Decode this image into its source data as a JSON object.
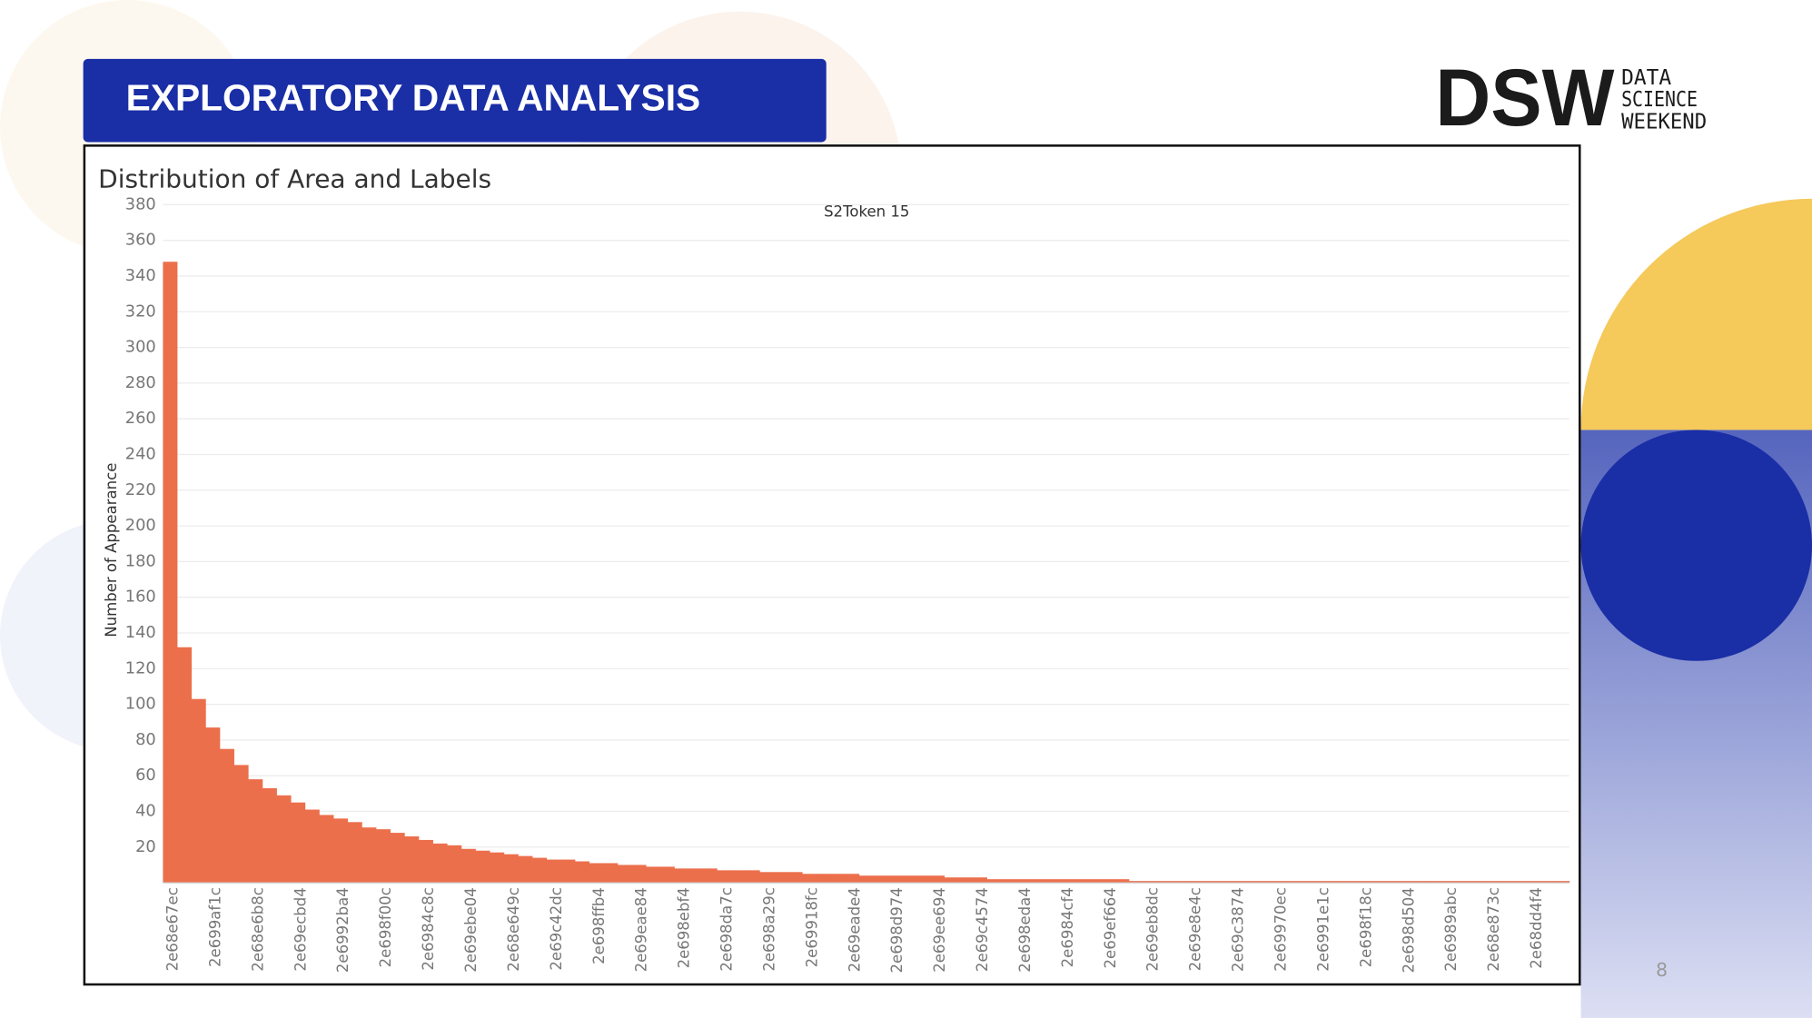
{
  "header": {
    "title": "EXPLORATORY DATA ANALYSIS"
  },
  "logo": {
    "mark": "DSW",
    "lines": [
      "DATA",
      "SCIENCE",
      "WEEKEND"
    ]
  },
  "page_number": "8",
  "chart_data": {
    "type": "bar",
    "title": "Distribution of Area and Labels",
    "subtitle": "S2Token 15",
    "y_label": "Number of Appearance",
    "color": "#ec6f4c",
    "grid": true,
    "ylim": [
      0,
      390
    ],
    "yticks": [
      20,
      40,
      60,
      80,
      100,
      120,
      140,
      160,
      180,
      200,
      220,
      240,
      260,
      280,
      300,
      320,
      340,
      360,
      380
    ],
    "categories": [
      "2e68e67ec",
      null,
      null,
      "2e699af1c",
      null,
      null,
      "2e68e6b8c",
      null,
      null,
      "2e69ecbd4",
      null,
      null,
      "2e6992ba4",
      null,
      null,
      "2e698f00c",
      null,
      null,
      "2e6984c8c",
      null,
      null,
      "2e69ebe04",
      null,
      null,
      "2e68e649c",
      null,
      null,
      "2e69c42dc",
      null,
      null,
      "2e698ffb4",
      null,
      null,
      "2e69eae84",
      null,
      null,
      "2e698ebf4",
      null,
      null,
      "2e698da7c",
      null,
      null,
      "2e698a29c",
      null,
      null,
      "2e69918fc",
      null,
      null,
      "2e69eade4",
      null,
      null,
      "2e698d974",
      null,
      null,
      "2e69ee694",
      null,
      null,
      "2e69c4574",
      null,
      null,
      "2e698eda4",
      null,
      null,
      "2e6984cf4",
      null,
      null,
      "2e69ef664",
      null,
      null,
      "2e69eb8dc",
      null,
      null,
      "2e69e8e4c",
      null,
      null,
      "2e69c3874",
      null,
      null,
      "2e69970ec",
      null,
      null,
      "2e6991e1c",
      null,
      null,
      "2e698f18c",
      null,
      null,
      "2e698d504",
      null,
      null,
      "2e6989abc",
      null,
      null,
      "2e68e873c",
      null,
      null,
      "2e68dd4f4",
      null,
      null
    ],
    "values": [
      348,
      132,
      103,
      87,
      75,
      66,
      58,
      53,
      49,
      45,
      41,
      38,
      36,
      34,
      31,
      30,
      28,
      26,
      24,
      22,
      21,
      19,
      18,
      17,
      16,
      15,
      14,
      13,
      13,
      12,
      11,
      11,
      10,
      10,
      9,
      9,
      8,
      8,
      8,
      7,
      7,
      7,
      6,
      6,
      6,
      5,
      5,
      5,
      5,
      4,
      4,
      4,
      4,
      4,
      4,
      3,
      3,
      3,
      2,
      2,
      2,
      2,
      2,
      2,
      2,
      2,
      2,
      2,
      1,
      1,
      1,
      1,
      1,
      1,
      1,
      1,
      1,
      1,
      1,
      1,
      1,
      1,
      1,
      1,
      1,
      1,
      1,
      1,
      1,
      1,
      1,
      1,
      1,
      1,
      1,
      1,
      1,
      1,
      1
    ]
  }
}
